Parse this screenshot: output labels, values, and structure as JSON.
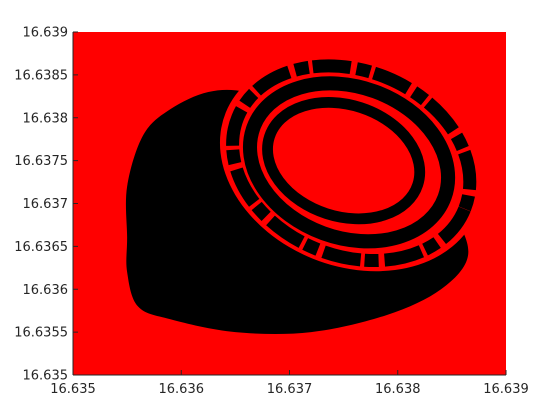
{
  "chart_data": {
    "type": "heatmap",
    "title": "",
    "xlabel": "",
    "ylabel": "",
    "xlim": [
      16.635,
      16.639
    ],
    "ylim": [
      16.635,
      16.639
    ],
    "grid": false,
    "legend": "none",
    "colors": {
      "background_class": "#ff0000",
      "region_class": "#000000"
    },
    "xticks": [
      {
        "value": 16.635,
        "label": "16.635"
      },
      {
        "value": 16.636,
        "label": "16.636"
      },
      {
        "value": 16.637,
        "label": "16.637"
      },
      {
        "value": 16.638,
        "label": "16.638"
      },
      {
        "value": 16.639,
        "label": "16.639"
      }
    ],
    "yticks": [
      {
        "value": 16.635,
        "label": "16.635"
      },
      {
        "value": 16.6355,
        "label": "16.6355"
      },
      {
        "value": 16.636,
        "label": "16.636"
      },
      {
        "value": 16.6365,
        "label": "16.6365"
      },
      {
        "value": 16.637,
        "label": "16.637"
      },
      {
        "value": 16.6375,
        "label": "16.6375"
      },
      {
        "value": 16.638,
        "label": "16.638"
      },
      {
        "value": 16.6385,
        "label": "16.6385"
      },
      {
        "value": 16.639,
        "label": "16.639"
      }
    ],
    "regions": [
      {
        "name": "black-blob",
        "color": "#000000",
        "outline": [
          [
            16.6355,
            16.6366
          ],
          [
            16.6355,
            16.6372
          ],
          [
            16.63565,
            16.6378
          ],
          [
            16.6359,
            16.6381
          ],
          [
            16.63625,
            16.6383
          ],
          [
            16.6366,
            16.6383
          ],
          [
            16.637,
            16.6381
          ],
          [
            16.6376,
            16.6378
          ],
          [
            16.63815,
            16.6374
          ],
          [
            16.6385,
            16.6369
          ],
          [
            16.63865,
            16.6364
          ],
          [
            16.6384,
            16.636
          ],
          [
            16.6379,
            16.6357
          ],
          [
            16.6372,
            16.6355
          ],
          [
            16.6365,
            16.6355
          ],
          [
            16.6359,
            16.63565
          ],
          [
            16.6356,
            16.6358
          ],
          [
            16.6355,
            16.6362
          ]
        ]
      }
    ],
    "rings": [
      {
        "name": "outer-ring",
        "color": "#000000",
        "center": [
          16.63757,
          16.63747
        ],
        "rx": 0.00113,
        "ry": 0.00108,
        "rotation_deg": 22,
        "width": 0.00012
      },
      {
        "name": "middle-ring",
        "color": "#000000",
        "center": [
          16.63755,
          16.63748
        ],
        "rx": 0.00094,
        "ry": 0.00088,
        "rotation_deg": 20,
        "width": 0.00013
      },
      {
        "name": "inner-ring",
        "color": "#000000",
        "center": [
          16.6375,
          16.6375
        ],
        "rx": 0.00072,
        "ry": 0.00065,
        "rotation_deg": 18,
        "width": 0.0001
      }
    ],
    "holes": [
      {
        "name": "inner-core",
        "color": "#ff0000",
        "center": [
          16.6375,
          16.63752
        ],
        "rx": 0.00062,
        "ry": 0.00055,
        "rotation_deg": 18
      }
    ]
  }
}
